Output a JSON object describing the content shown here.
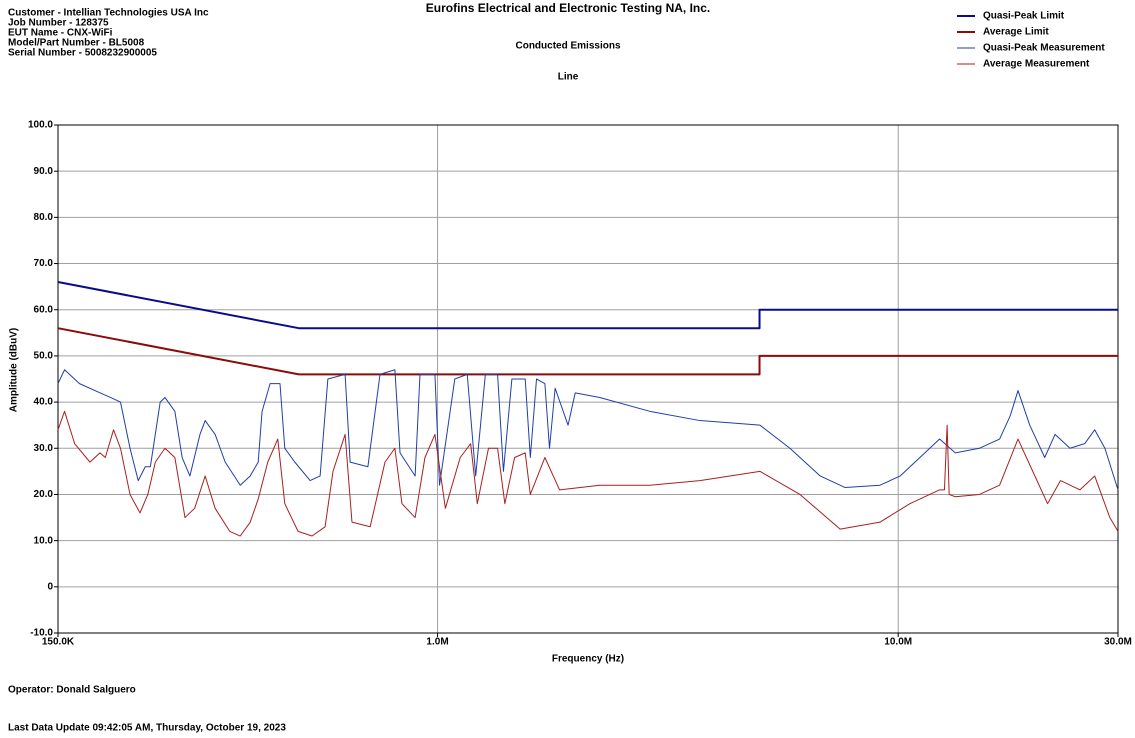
{
  "chart_data": {
    "type": "line",
    "title": "Eurofins Electrical and Electronic Testing NA, Inc.",
    "subtitle": "Conducted Emissions",
    "subtitle2": "Line",
    "header_lines": [
      "Customer - Intellian Technologies USA Inc",
      "Job Number  - 128375",
      "EUT Name - CNX-WiFi",
      "Model/Part Number - BL5008",
      "Serial Number - 5008232900005"
    ],
    "footer_lines": [
      "Operator: Donald Salguero",
      "Last Data Update 09:42:05 AM, Thursday, October 19, 2023"
    ],
    "x_label": "Frequency (Hz)",
    "y_label": "Amplitude (dBuV)",
    "x_scale": "log",
    "xlim": [
      150000,
      30000000
    ],
    "xticks": [
      {
        "value": 150000,
        "label": "150.0K"
      },
      {
        "value": 1000000,
        "label": "1.0M"
      },
      {
        "value": 10000000,
        "label": "10.0M"
      },
      {
        "value": 30000000,
        "label": "30.0M"
      }
    ],
    "ylim": [
      -10,
      100
    ],
    "yticks": [
      {
        "value": -10,
        "label": "-10.0"
      },
      0,
      {
        "value": 10,
        "label": "10.0"
      },
      {
        "value": 20,
        "label": "20.0"
      },
      {
        "value": 30,
        "label": "30.0"
      },
      {
        "value": 40,
        "label": "40.0"
      },
      {
        "value": 50,
        "label": "50.0"
      },
      {
        "value": 60,
        "label": "60.0"
      },
      {
        "value": 70,
        "label": "70.0"
      },
      {
        "value": 80,
        "label": "80.0"
      },
      {
        "value": 90,
        "label": "90.0"
      },
      {
        "value": 100,
        "label": "100.0"
      }
    ],
    "grid": true,
    "legend": "top-right",
    "series": [
      {
        "name": "Quasi-Peak Limit",
        "color": "#0a0a8c",
        "line_width": 2,
        "x": [
          150000,
          500000,
          5000000,
          5000000,
          30000000
        ],
        "values": [
          66,
          56,
          56,
          60,
          60
        ]
      },
      {
        "name": "Average Limit",
        "color": "#8c0a0a",
        "line_width": 2,
        "x": [
          150000,
          500000,
          5000000,
          5000000,
          30000000
        ],
        "values": [
          56,
          46,
          46,
          50,
          50
        ]
      },
      {
        "name": "Quasi-Peak Measurement",
        "color": "#1f3fa8",
        "line_width": 1,
        "x": [
          150000,
          155000,
          167000,
          185000,
          195000,
          205000,
          215000,
          224000,
          232000,
          238000,
          250000,
          256000,
          269000,
          279000,
          290000,
          305000,
          313000,
          329000,
          346000,
          373000,
          392000,
          408000,
          416000,
          433000,
          455000,
          466000,
          490000,
          529000,
          556000,
          578000,
          630000,
          646000,
          706000,
          750000,
          808000,
          829000,
          894000,
          916000,
          987000,
          1010000,
          1090000,
          1160000,
          1210000,
          1270000,
          1350000,
          1390000,
          1450000,
          1550000,
          1590000,
          1640000,
          1710000,
          1750000,
          1800000,
          1920000,
          1990000,
          2250000,
          2890000,
          3710000,
          5010000,
          5820000,
          6770000,
          7670000,
          9130000,
          10100000,
          12300000,
          13300000,
          15000000,
          16600000,
          17500000,
          18200000,
          19300000,
          20800000,
          21900000,
          23600000,
          25400000,
          26700000,
          28100000,
          30000000
        ],
        "values": [
          44,
          47,
          44,
          42,
          41,
          40,
          30,
          23,
          26,
          26,
          40,
          41,
          38,
          28,
          24,
          33,
          36,
          33,
          27,
          22,
          24,
          27,
          38,
          44,
          44,
          30,
          27,
          23,
          24,
          45,
          46,
          27,
          26,
          46,
          47,
          29,
          24,
          46,
          46,
          22,
          45,
          46,
          24,
          46,
          46,
          25,
          45,
          45,
          28,
          45,
          44,
          30,
          43,
          35,
          42,
          41,
          38,
          36,
          35,
          30,
          24,
          21.5,
          22,
          24,
          32,
          29,
          30,
          32,
          37,
          42.5,
          35,
          28,
          33,
          30,
          31,
          34,
          30,
          21
        ]
      },
      {
        "name": "Average Measurement",
        "color": "#a82020",
        "line_width": 1,
        "x": [
          150000,
          155000,
          163000,
          176000,
          185000,
          190000,
          198000,
          205000,
          215000,
          226000,
          235000,
          244000,
          256000,
          269000,
          283000,
          297000,
          313000,
          329000,
          354000,
          373000,
          392000,
          408000,
          428000,
          450000,
          466000,
          498000,
          534000,
          570000,
          593000,
          630000,
          652000,
          714000,
          769000,
          808000,
          837000,
          894000,
          939000,
          987000,
          1040000,
          1120000,
          1180000,
          1220000,
          1290000,
          1350000,
          1400000,
          1470000,
          1550000,
          1590000,
          1710000,
          1840000,
          2250000,
          2890000,
          3710000,
          5010000,
          6120000,
          7480000,
          9130000,
          10600000,
          12300000,
          12600000,
          12770000,
          12900000,
          13300000,
          15000000,
          16600000,
          18200000,
          19800000,
          21100000,
          22500000,
          24800000,
          26700000,
          28800000,
          30000000
        ],
        "values": [
          34,
          38,
          31,
          27,
          29,
          28,
          34,
          30,
          20,
          16,
          20,
          27,
          30,
          28,
          15,
          17,
          24,
          17,
          12,
          11,
          14,
          19,
          27,
          32,
          18,
          12,
          11,
          13,
          25,
          33,
          14,
          13,
          27,
          30,
          18,
          15,
          28,
          33,
          17,
          28,
          31,
          18,
          30,
          30,
          18,
          28,
          29,
          20,
          28,
          21,
          22,
          22,
          23,
          25,
          20,
          12.5,
          14,
          18,
          21,
          21,
          35,
          20,
          19.5,
          20,
          22,
          32,
          24,
          18,
          23,
          21,
          24,
          15,
          12
        ]
      }
    ]
  }
}
